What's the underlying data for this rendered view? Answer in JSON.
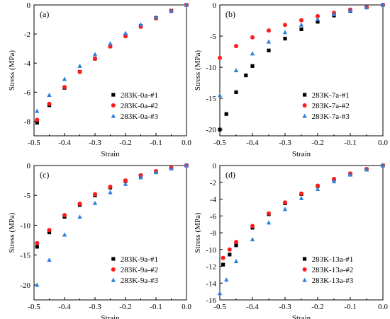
{
  "chart_data": [
    {
      "type": "scatter",
      "panel_label": "(a)",
      "xlabel": "Strain",
      "ylabel": "Stress (MPa)",
      "xlim": [
        -0.5,
        0.0
      ],
      "ylim": [
        -9,
        0
      ],
      "xticks": [
        -0.5,
        -0.4,
        -0.3,
        -0.2,
        -0.1,
        0.0
      ],
      "xtick_labels": [
        "-0.5",
        "-0.4",
        "-0.3",
        "-0.2",
        "-0.1",
        "0.0"
      ],
      "yticks": [
        -8,
        -6,
        -4,
        -2,
        0
      ],
      "ytick_labels": [
        "-8",
        "-6",
        "-4",
        "-2",
        "0"
      ],
      "legend_position": "bottom-right",
      "series": [
        {
          "name": "283K-0a-#1",
          "marker": "square",
          "color": "#000000",
          "x": [
            -0.49,
            -0.45,
            -0.4,
            -0.35,
            -0.3,
            -0.25,
            -0.2,
            -0.15,
            -0.1,
            -0.05,
            0.0
          ],
          "y": [
            -8.1,
            -6.9,
            -5.7,
            -4.6,
            -3.7,
            -2.85,
            -2.1,
            -1.45,
            -0.9,
            -0.4,
            0.0
          ]
        },
        {
          "name": "283K-0a-#2",
          "marker": "circle",
          "color": "#ff1a1a",
          "x": [
            -0.49,
            -0.45,
            -0.4,
            -0.35,
            -0.3,
            -0.25,
            -0.2,
            -0.15,
            -0.1,
            -0.05,
            0.0
          ],
          "y": [
            -7.9,
            -6.8,
            -5.65,
            -4.6,
            -3.7,
            -2.85,
            -2.15,
            -1.5,
            -0.92,
            -0.42,
            0.0
          ]
        },
        {
          "name": "283K-0a-#3",
          "marker": "triangle",
          "color": "#2f7fe0",
          "x": [
            -0.49,
            -0.45,
            -0.4,
            -0.35,
            -0.3,
            -0.25,
            -0.2,
            -0.15,
            -0.1,
            -0.05,
            0.0
          ],
          "y": [
            -7.3,
            -6.2,
            -5.1,
            -4.2,
            -3.4,
            -2.65,
            -1.95,
            -1.35,
            -0.85,
            -0.4,
            0.0
          ]
        }
      ]
    },
    {
      "type": "scatter",
      "panel_label": "(b)",
      "xlabel": "Strain",
      "ylabel": "Stress (MPa)",
      "xlim": [
        -0.5,
        0.0
      ],
      "ylim": [
        -21,
        0
      ],
      "xticks": [
        -0.5,
        -0.4,
        -0.3,
        -0.2,
        -0.1,
        0.0
      ],
      "xtick_labels": [
        "-0.5",
        "-0.4",
        "-0.3",
        "-0.2",
        "-0.1",
        "0.0"
      ],
      "yticks": [
        -20,
        -15,
        -10,
        -5,
        0
      ],
      "ytick_labels": [
        "-20",
        "-15",
        "-10",
        "-5",
        "0"
      ],
      "legend_position": "bottom-right",
      "series": [
        {
          "name": "283K-7a-#1",
          "marker": "square",
          "color": "#000000",
          "x": [
            -0.5,
            -0.48,
            -0.45,
            -0.42,
            -0.4,
            -0.35,
            -0.3,
            -0.25,
            -0.2,
            -0.15,
            -0.1,
            -0.05,
            0.0
          ],
          "y": [
            -20.0,
            -17.5,
            -14.0,
            -11.3,
            -9.8,
            -7.3,
            -5.4,
            -3.9,
            -2.7,
            -1.7,
            -0.95,
            -0.4,
            0.0
          ]
        },
        {
          "name": "283K-7a-#2",
          "marker": "circle",
          "color": "#ff1a1a",
          "x": [
            -0.5,
            -0.45,
            -0.4,
            -0.35,
            -0.3,
            -0.25,
            -0.2,
            -0.15,
            -0.1,
            -0.05,
            0.0
          ],
          "y": [
            -8.5,
            -6.6,
            -5.2,
            -4.1,
            -3.2,
            -2.45,
            -1.8,
            -1.25,
            -0.75,
            -0.35,
            0.0
          ]
        },
        {
          "name": "283K-7a-#3",
          "marker": "triangle",
          "color": "#2f7fe0",
          "x": [
            -0.5,
            -0.45,
            -0.4,
            -0.35,
            -0.3,
            -0.25,
            -0.2,
            -0.15,
            -0.1,
            -0.05,
            0.0
          ],
          "y": [
            -14.5,
            -10.5,
            -7.8,
            -5.9,
            -4.4,
            -3.2,
            -2.3,
            -1.5,
            -0.9,
            -0.4,
            0.0
          ]
        }
      ]
    },
    {
      "type": "scatter",
      "panel_label": "(c)",
      "xlabel": "Strain",
      "ylabel": "Stress (MPa)",
      "xlim": [
        -0.5,
        0.0
      ],
      "ylim": [
        -22.5,
        0
      ],
      "xticks": [
        -0.5,
        -0.4,
        -0.3,
        -0.2,
        -0.1,
        0.0
      ],
      "xtick_labels": [
        "-0.5",
        "-0.4",
        "-0.3",
        "-0.2",
        "-0.1",
        "0.0"
      ],
      "yticks": [
        -20,
        -15,
        -10,
        -5,
        0
      ],
      "ytick_labels": [
        "-20",
        "-15",
        "-10",
        "-5",
        "0"
      ],
      "legend_position": "bottom-right",
      "series": [
        {
          "name": "283K-9a-#1",
          "marker": "square",
          "color": "#000000",
          "x": [
            -0.49,
            -0.45,
            -0.4,
            -0.35,
            -0.3,
            -0.25,
            -0.2,
            -0.15,
            -0.1,
            -0.05,
            0.0
          ],
          "y": [
            -13.6,
            -11.2,
            -8.6,
            -6.6,
            -5.0,
            -3.7,
            -2.6,
            -1.7,
            -1.0,
            -0.45,
            0.0
          ]
        },
        {
          "name": "283K-9a-#2",
          "marker": "circle",
          "color": "#ff1a1a",
          "x": [
            -0.49,
            -0.45,
            -0.4,
            -0.35,
            -0.3,
            -0.25,
            -0.2,
            -0.15,
            -0.1,
            -0.05,
            0.0
          ],
          "y": [
            -13.0,
            -10.8,
            -8.3,
            -6.4,
            -4.8,
            -3.55,
            -2.5,
            -1.65,
            -0.95,
            -0.42,
            0.0
          ]
        },
        {
          "name": "283K-9a-#3",
          "marker": "triangle",
          "color": "#2f7fe0",
          "x": [
            -0.49,
            -0.45,
            -0.4,
            -0.35,
            -0.3,
            -0.25,
            -0.2,
            -0.15,
            -0.1,
            -0.05,
            0.0
          ],
          "y": [
            -20.0,
            -15.8,
            -11.6,
            -8.6,
            -6.3,
            -4.5,
            -3.1,
            -2.0,
            -1.15,
            -0.5,
            0.0
          ]
        }
      ]
    },
    {
      "type": "scatter",
      "panel_label": "(d)",
      "xlabel": "Strain",
      "ylabel": "Stress (MPa)",
      "xlim": [
        -0.5,
        0.0
      ],
      "ylim": [
        -16,
        0
      ],
      "xticks": [
        -0.5,
        -0.4,
        -0.3,
        -0.2,
        -0.1,
        0.0
      ],
      "xtick_labels": [
        "-0.5",
        "-0.4",
        "-0.3",
        "-0.2",
        "-0.1",
        "0.0"
      ],
      "yticks": [
        -16,
        -14,
        -12,
        -10,
        -8,
        -6,
        -4,
        -2,
        0
      ],
      "ytick_labels": [
        "-16",
        "-14",
        "-12",
        "-10",
        "-8",
        "-6",
        "-4",
        "-2",
        "0"
      ],
      "legend_position": "bottom-right",
      "series": [
        {
          "name": "283K-13a-#1",
          "marker": "square",
          "color": "#000000",
          "x": [
            -0.49,
            -0.47,
            -0.45,
            -0.4,
            -0.35,
            -0.3,
            -0.25,
            -0.2,
            -0.15,
            -0.1,
            -0.05,
            0.0
          ],
          "y": [
            -11.8,
            -10.6,
            -9.5,
            -7.4,
            -5.8,
            -4.5,
            -3.4,
            -2.45,
            -1.65,
            -1.0,
            -0.45,
            0.0
          ]
        },
        {
          "name": "283K-13a-#2",
          "marker": "circle",
          "color": "#ff1a1a",
          "x": [
            -0.49,
            -0.47,
            -0.45,
            -0.4,
            -0.35,
            -0.3,
            -0.25,
            -0.2,
            -0.15,
            -0.1,
            -0.05,
            0.0
          ],
          "y": [
            -11.0,
            -10.0,
            -9.1,
            -7.2,
            -5.7,
            -4.4,
            -3.35,
            -2.4,
            -1.6,
            -0.95,
            -0.42,
            0.0
          ]
        },
        {
          "name": "283K-13a-#3",
          "marker": "triangle",
          "color": "#2f7fe0",
          "x": [
            -0.5,
            -0.48,
            -0.45,
            -0.4,
            -0.35,
            -0.3,
            -0.25,
            -0.2,
            -0.15,
            -0.1,
            -0.05,
            0.0
          ],
          "y": [
            -15.2,
            -13.6,
            -11.4,
            -8.8,
            -6.8,
            -5.2,
            -3.9,
            -2.8,
            -1.9,
            -1.1,
            -0.5,
            0.0
          ]
        }
      ]
    }
  ]
}
